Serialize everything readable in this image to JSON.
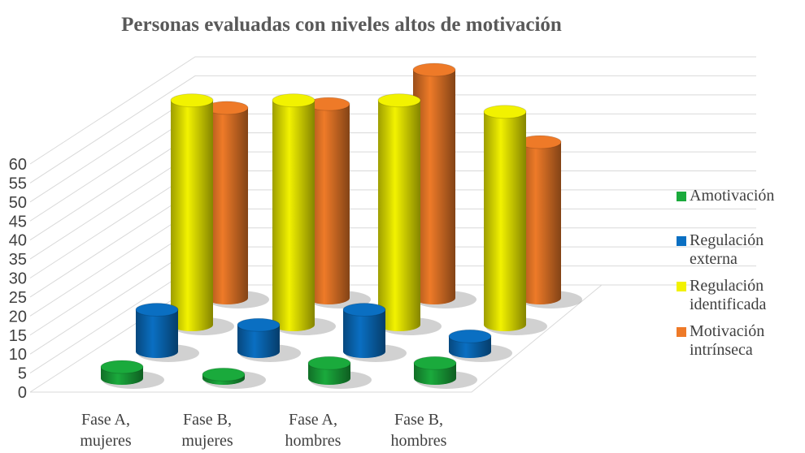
{
  "chart_data": {
    "type": "bar3d",
    "title": "Personas evaluadas con niveles altos de motivación",
    "categories": [
      [
        "Fase A,",
        "mujeres"
      ],
      [
        "Fase B,",
        "mujeres"
      ],
      [
        "Fase A,",
        "hombres"
      ],
      [
        "Fase B,",
        "hombres"
      ]
    ],
    "series": [
      {
        "name": "Amotivación",
        "color": "#1aaa3c",
        "values": [
          3,
          1,
          4,
          4
        ]
      },
      {
        "name": "Regulación externa",
        "color": "#0a6fc2",
        "values": [
          11,
          7,
          11,
          4
        ]
      },
      {
        "name": "Regulación identificada",
        "color": "#f2f200",
        "values": [
          59,
          59,
          59,
          56
        ]
      },
      {
        "name": "Motivación intrínseca",
        "color": "#ee7a28",
        "values": [
          50,
          51,
          60,
          41
        ]
      }
    ],
    "ylim": [
      0,
      60
    ],
    "yticks": [
      0,
      5,
      10,
      15,
      20,
      25,
      30,
      35,
      40,
      45,
      50,
      55,
      60
    ],
    "grid": true
  }
}
